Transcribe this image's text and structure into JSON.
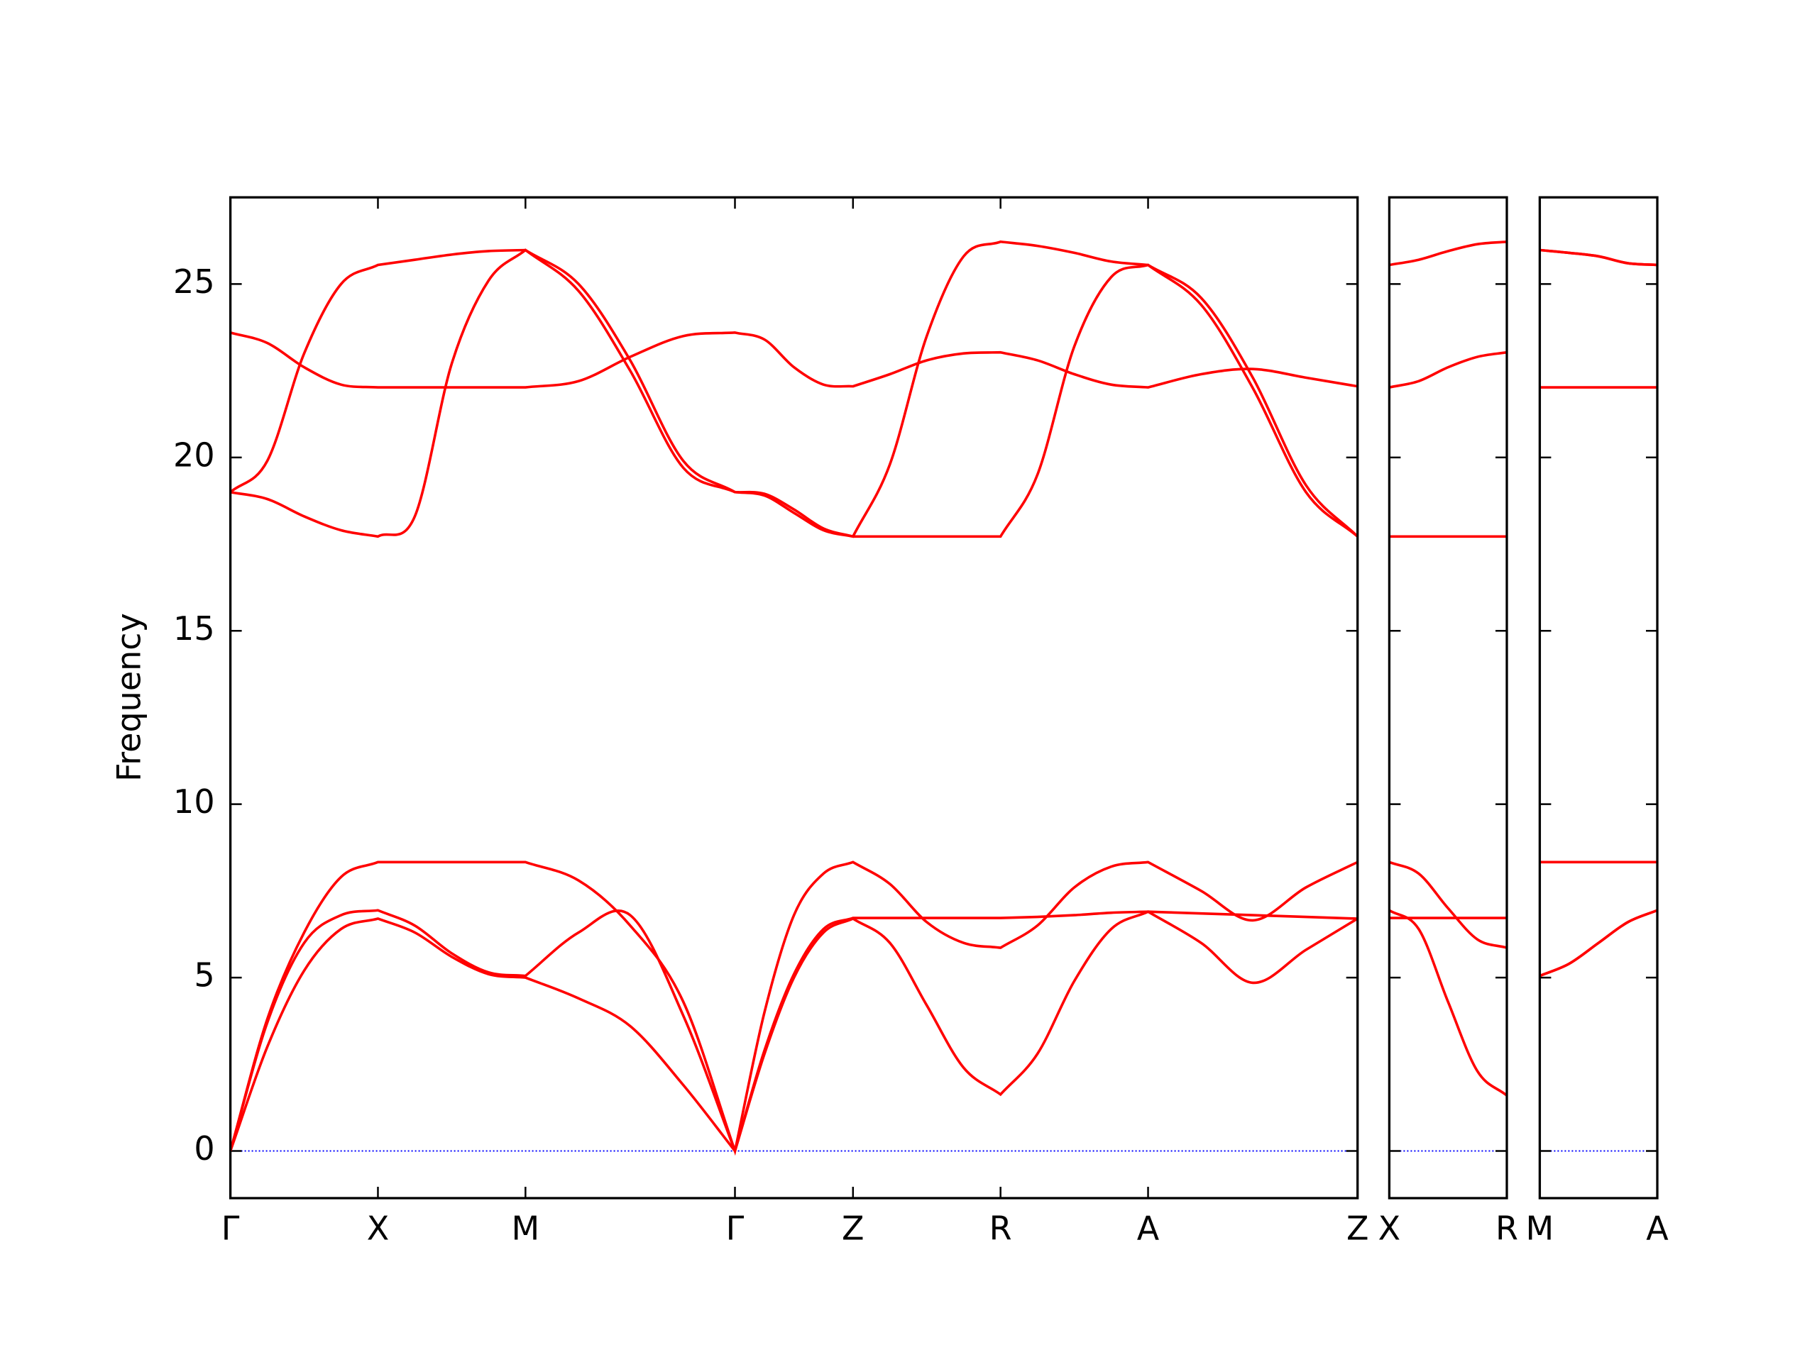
{
  "chart_data": [
    {
      "type": "line",
      "ylabel": "Frequency",
      "line_color": "#ff0000",
      "zero_line_color": "#0000ff",
      "xlim": [
        0,
        7.64
      ],
      "ylim": [
        -1.36,
        27.5
      ],
      "yticks": [
        0,
        5,
        10,
        15,
        20,
        25
      ],
      "xticks": [
        {
          "value": 0,
          "label": "Γ"
        },
        {
          "value": 1,
          "label": "X"
        },
        {
          "value": 2,
          "label": "M"
        },
        {
          "value": 3.42,
          "label": "Γ"
        },
        {
          "value": 4.22,
          "label": "Z"
        },
        {
          "value": 5.22,
          "label": "R"
        },
        {
          "value": 6.22,
          "label": "A"
        },
        {
          "value": 7.64,
          "label": "Z"
        }
      ],
      "x": [
        0,
        0.25,
        0.5,
        0.75,
        1,
        1.25,
        1.5,
        1.75,
        2,
        2.36,
        2.71,
        3.07,
        3.42,
        3.62,
        3.82,
        4.02,
        4.22,
        4.47,
        4.72,
        4.97,
        5.22,
        5.47,
        5.72,
        5.97,
        6.22,
        6.58,
        6.93,
        7.29,
        7.64
      ],
      "series": [
        {
          "color": "#ff0000",
          "values": [
            0,
            3.0,
            5.2,
            6.4,
            6.7,
            6.3,
            5.6,
            5.1,
            5.0,
            4.4,
            3.6,
            1.9,
            0,
            2.8,
            5.0,
            6.3,
            6.7,
            6.0,
            4.2,
            2.4,
            1.63,
            2.8,
            4.9,
            6.4,
            6.9,
            6.0,
            4.85,
            5.8,
            6.7
          ]
        },
        {
          "color": "#ff0000",
          "values": [
            0,
            3.7,
            6.0,
            6.8,
            6.94,
            6.5,
            5.7,
            5.15,
            5.05,
            6.3,
            6.8,
            3.9,
            0,
            2.9,
            5.1,
            6.4,
            6.72,
            6.72,
            6.72,
            6.72,
            6.72,
            6.75,
            6.8,
            6.87,
            6.9,
            6.85,
            6.8,
            6.75,
            6.7
          ]
        },
        {
          "color": "#ff0000",
          "values": [
            0,
            3.8,
            6.3,
            7.9,
            8.33,
            8.33,
            8.33,
            8.33,
            8.33,
            7.8,
            6.5,
            4.3,
            0,
            4.0,
            6.8,
            8.0,
            8.33,
            7.7,
            6.6,
            6.0,
            5.86,
            6.5,
            7.6,
            8.2,
            8.33,
            7.5,
            6.65,
            7.6,
            8.33
          ]
        },
        {
          "color": "#ff0000",
          "values": [
            19.0,
            18.8,
            18.3,
            17.9,
            17.72,
            18.3,
            22.7,
            25.1,
            25.98,
            25.0,
            22.8,
            19.9,
            19.0,
            18.95,
            18.5,
            17.95,
            17.72,
            17.72,
            17.72,
            17.72,
            17.72,
            19.5,
            23.2,
            25.2,
            25.55,
            24.6,
            22.3,
            19.2,
            17.72
          ]
        },
        {
          "color": "#ff0000",
          "values": [
            19.0,
            19.9,
            23.0,
            25.0,
            25.55,
            25.7,
            25.85,
            25.95,
            25.98,
            24.8,
            22.5,
            19.7,
            19.0,
            18.9,
            18.4,
            17.9,
            17.72,
            19.8,
            23.5,
            25.8,
            26.22,
            26.1,
            25.9,
            25.65,
            25.55,
            24.4,
            22.0,
            19.0,
            17.72
          ]
        },
        {
          "color": "#ff0000",
          "values": [
            23.6,
            23.3,
            22.6,
            22.1,
            22.02,
            22.02,
            22.02,
            22.02,
            22.02,
            22.2,
            22.9,
            23.5,
            23.6,
            23.4,
            22.6,
            22.1,
            22.05,
            22.4,
            22.8,
            23.0,
            23.03,
            22.8,
            22.4,
            22.1,
            22.02,
            22.4,
            22.55,
            22.3,
            22.05
          ]
        }
      ]
    },
    {
      "type": "line",
      "xlim": [
        0,
        0.8
      ],
      "ylim": [
        -1.36,
        27.5
      ],
      "xticks": [
        {
          "value": 0,
          "label": "X"
        },
        {
          "value": 0.8,
          "label": "R"
        }
      ],
      "x": [
        0,
        0.2,
        0.4,
        0.6,
        0.8
      ],
      "series": [
        {
          "color": "#ff0000",
          "values": [
            6.94,
            6.4,
            4.3,
            2.3,
            1.6
          ]
        },
        {
          "color": "#ff0000",
          "values": [
            6.72,
            6.72,
            6.72,
            6.72,
            6.72
          ]
        },
        {
          "color": "#ff0000",
          "values": [
            8.33,
            8.0,
            7.0,
            6.1,
            5.86
          ]
        },
        {
          "color": "#ff0000",
          "values": [
            17.72,
            17.72,
            17.72,
            17.72,
            17.72
          ]
        },
        {
          "color": "#ff0000",
          "values": [
            25.55,
            25.7,
            25.95,
            26.15,
            26.22
          ]
        },
        {
          "color": "#ff0000",
          "values": [
            22.02,
            22.2,
            22.6,
            22.9,
            23.03
          ]
        }
      ]
    },
    {
      "type": "line",
      "xlim": [
        0,
        0.8
      ],
      "ylim": [
        -1.36,
        27.5
      ],
      "xticks": [
        {
          "value": 0,
          "label": "M"
        },
        {
          "value": 0.8,
          "label": "A"
        }
      ],
      "x": [
        0,
        0.2,
        0.4,
        0.6,
        0.8
      ],
      "series": [
        {
          "color": "#ff0000",
          "values": [
            5.05,
            5.4,
            6.0,
            6.6,
            6.94
          ]
        },
        {
          "color": "#ff0000",
          "values": [
            5.05,
            5.4,
            6.0,
            6.6,
            6.94
          ]
        },
        {
          "color": "#ff0000",
          "values": [
            8.33,
            8.33,
            8.33,
            8.33,
            8.33
          ]
        },
        {
          "color": "#ff0000",
          "values": [
            25.98,
            25.9,
            25.8,
            25.6,
            25.55
          ]
        },
        {
          "color": "#ff0000",
          "values": [
            25.98,
            25.9,
            25.8,
            25.6,
            25.55
          ]
        },
        {
          "color": "#ff0000",
          "values": [
            22.02,
            22.02,
            22.02,
            22.02,
            22.02
          ]
        }
      ]
    }
  ]
}
